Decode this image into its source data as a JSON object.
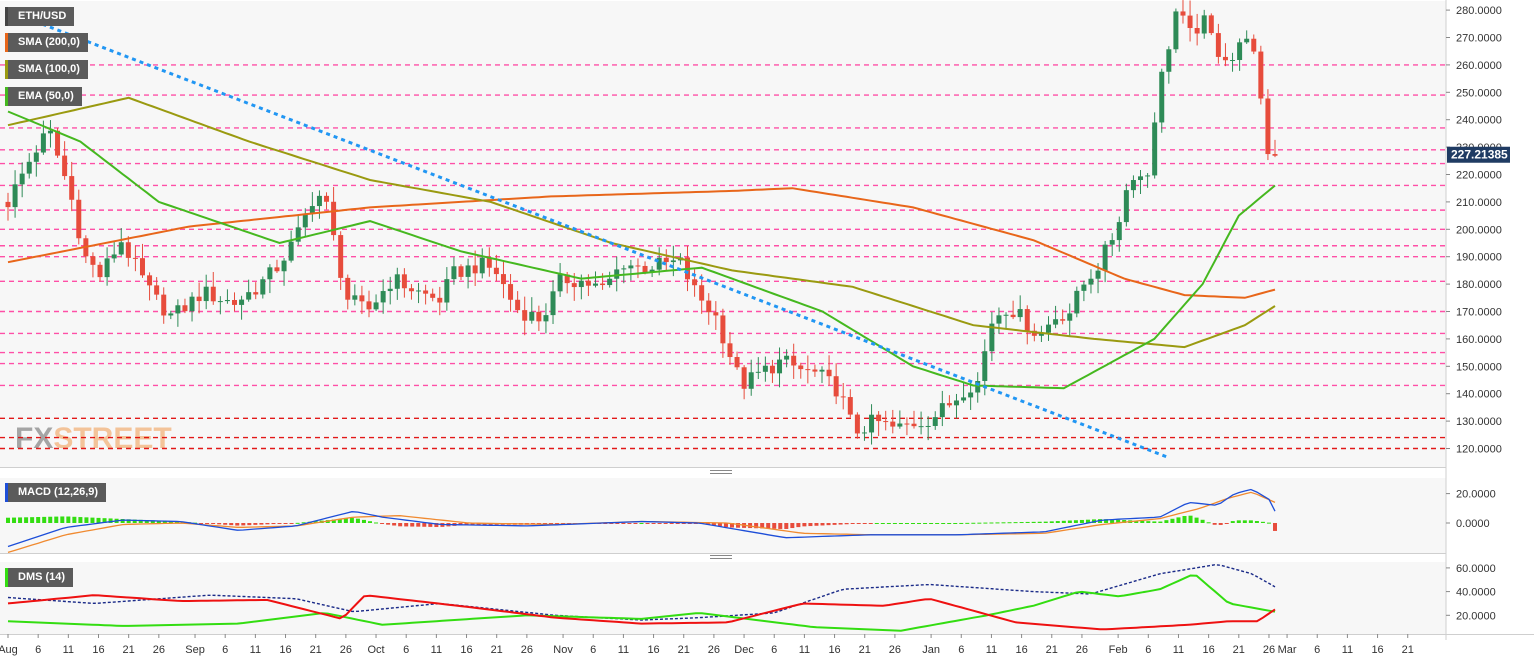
{
  "colors": {
    "up": "#2e8b57",
    "down": "#e74c3c",
    "level": "#ff3d9e",
    "support": "#e00000",
    "trend": "#2196f3",
    "sma200": "#e8661a",
    "sma100": "#9a9a10",
    "ema50": "#45b81f",
    "macd": "#1d4ed8",
    "signal": "#f08a30",
    "dmPlus": "#33dd11",
    "dmMinus": "#ee1111",
    "adx": "#1a2a88",
    "price_badge": "#1f3b63"
  },
  "chart_data": [
    {
      "type": "candlestick",
      "title": "ETH/USD",
      "current_price_label": "227.21385",
      "yticks": [
        "120.0000",
        "130.0000",
        "140.0000",
        "150.0000",
        "160.0000",
        "170.0000",
        "180.0000",
        "190.0000",
        "200.0000",
        "210.0000",
        "220.0000",
        "230.0000",
        "240.0000",
        "250.0000",
        "260.0000",
        "270.0000",
        "280.0000"
      ],
      "ylim": [
        115,
        287
      ],
      "xticks": [
        "Aug",
        "6",
        "11",
        "16",
        "21",
        "26",
        "Sep",
        "6",
        "11",
        "16",
        "21",
        "26",
        "Oct",
        "6",
        "11",
        "16",
        "21",
        "26",
        "Nov",
        "6",
        "11",
        "16",
        "21",
        "26",
        "Dec",
        "6",
        "11",
        "16",
        "21",
        "26",
        "Jan",
        "6",
        "11",
        "16",
        "21",
        "26",
        "Feb",
        "6",
        "11",
        "16",
        "21",
        "26",
        "Mar",
        "6",
        "11",
        "16",
        "21"
      ],
      "legend": [
        {
          "key": "sma200",
          "label": "SMA (200,0)"
        },
        {
          "key": "sma100",
          "label": "SMA (100,0)"
        },
        {
          "key": "ema50",
          "label": "EMA (50,0)"
        }
      ],
      "resistance_levels": [
        120,
        124,
        131,
        143,
        151,
        155,
        162,
        170,
        181,
        190,
        194,
        200,
        207,
        216,
        224,
        229,
        237,
        249,
        260,
        287
      ],
      "key_support_levels": [
        120,
        124,
        131
      ],
      "trendline": [
        {
          "date": "Aug 3",
          "value": 278
        },
        {
          "date": "Jan 31",
          "value": 117
        }
      ],
      "watermark": "FXSTREET"
    },
    {
      "type": "line",
      "title": "MACD (12,26,9)",
      "yticks": [
        "0.0000",
        "20.0000"
      ],
      "series": [
        "MACD",
        "signal",
        "histogram"
      ]
    },
    {
      "type": "line",
      "title": "DMS (14)",
      "yticks": [
        "20.0000",
        "40.0000",
        "60.0000"
      ],
      "series": [
        "DI+",
        "DI-",
        "ADX"
      ]
    }
  ]
}
